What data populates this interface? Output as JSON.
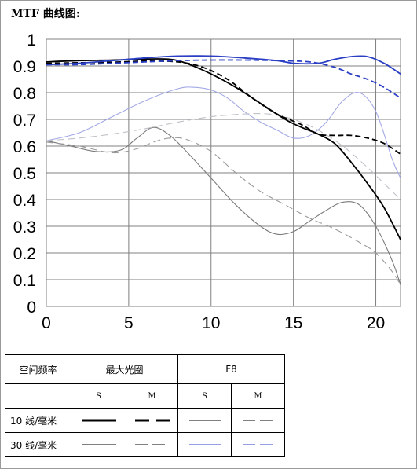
{
  "chart_data": {
    "type": "line",
    "title": "MTF 曲线图:",
    "xlabel": "",
    "ylabel": "",
    "xlim": [
      0,
      21.5
    ],
    "ylim": [
      0,
      1
    ],
    "x_ticks": [
      "0",
      "5",
      "10",
      "15",
      "20"
    ],
    "y_ticks": [
      "1",
      "0.9",
      "0.8",
      "0.7",
      "0.6",
      "0.5",
      "0.4",
      "0.3",
      "0.2",
      "0.1",
      "0"
    ],
    "grid": true,
    "series": [
      {
        "name": "10线/毫米 最大光圈 S",
        "color": "#000000",
        "style": "solid",
        "weight": "thick",
        "points": [
          [
            0,
            0.915
          ],
          [
            2,
            0.92
          ],
          [
            4,
            0.922
          ],
          [
            6,
            0.926
          ],
          [
            7.5,
            0.925
          ],
          [
            8.5,
            0.91
          ],
          [
            10,
            0.87
          ],
          [
            11.5,
            0.82
          ],
          [
            13,
            0.76
          ],
          [
            14.5,
            0.7
          ],
          [
            15.5,
            0.67
          ],
          [
            16.5,
            0.645
          ],
          [
            17.5,
            0.61
          ],
          [
            18.5,
            0.54
          ],
          [
            19.5,
            0.46
          ],
          [
            20.5,
            0.37
          ],
          [
            21.5,
            0.25
          ]
        ]
      },
      {
        "name": "10线/毫米 最大光圈 M",
        "color": "#000000",
        "style": "dashed",
        "weight": "thick",
        "points": [
          [
            0,
            0.91
          ],
          [
            2,
            0.912
          ],
          [
            4,
            0.914
          ],
          [
            6,
            0.918
          ],
          [
            8,
            0.915
          ],
          [
            9.5,
            0.895
          ],
          [
            11,
            0.85
          ],
          [
            12.5,
            0.78
          ],
          [
            14,
            0.72
          ],
          [
            15.5,
            0.68
          ],
          [
            16.5,
            0.645
          ],
          [
            17.5,
            0.64
          ],
          [
            18.5,
            0.64
          ],
          [
            19.5,
            0.63
          ],
          [
            20.5,
            0.61
          ],
          [
            21.5,
            0.57
          ]
        ]
      },
      {
        "name": "10线/毫米 F8 S",
        "color": "#2b3fc4",
        "style": "solid",
        "weight": "thick",
        "points": [
          [
            0,
            0.905
          ],
          [
            2,
            0.91
          ],
          [
            4,
            0.92
          ],
          [
            6,
            0.93
          ],
          [
            8,
            0.937
          ],
          [
            10,
            0.937
          ],
          [
            12,
            0.93
          ],
          [
            14,
            0.92
          ],
          [
            15,
            0.91
          ],
          [
            16.5,
            0.91
          ],
          [
            17.5,
            0.925
          ],
          [
            18.5,
            0.935
          ],
          [
            19.5,
            0.935
          ],
          [
            20.5,
            0.91
          ],
          [
            21.5,
            0.87
          ]
        ]
      },
      {
        "name": "10线/毫米 F8 M",
        "color": "#2b3fc4",
        "style": "dashed",
        "weight": "thick",
        "points": [
          [
            0,
            0.905
          ],
          [
            2,
            0.905
          ],
          [
            4,
            0.91
          ],
          [
            6,
            0.915
          ],
          [
            8,
            0.92
          ],
          [
            10,
            0.922
          ],
          [
            12,
            0.922
          ],
          [
            14,
            0.92
          ],
          [
            16,
            0.915
          ],
          [
            17.5,
            0.895
          ],
          [
            18.5,
            0.87
          ],
          [
            19.5,
            0.85
          ],
          [
            20.5,
            0.82
          ],
          [
            21.5,
            0.78
          ]
        ]
      },
      {
        "name": "30线/毫米 最大光圈 S",
        "color": "#7a7a7a",
        "style": "solid",
        "weight": "thin",
        "points": [
          [
            0,
            0.62
          ],
          [
            1.5,
            0.6
          ],
          [
            3,
            0.58
          ],
          [
            4.5,
            0.585
          ],
          [
            5.5,
            0.63
          ],
          [
            6.5,
            0.67
          ],
          [
            7.5,
            0.64
          ],
          [
            8.5,
            0.58
          ],
          [
            10,
            0.48
          ],
          [
            11.5,
            0.38
          ],
          [
            13,
            0.3
          ],
          [
            14,
            0.27
          ],
          [
            15,
            0.28
          ],
          [
            16,
            0.32
          ],
          [
            17,
            0.36
          ],
          [
            18,
            0.39
          ],
          [
            19,
            0.38
          ],
          [
            20,
            0.3
          ],
          [
            21,
            0.17
          ],
          [
            21.5,
            0.08
          ]
        ]
      },
      {
        "name": "30线/毫米 最大光圈 M",
        "color": "#9a9a9a",
        "style": "dashed",
        "weight": "thin",
        "points": [
          [
            0,
            0.615
          ],
          [
            2,
            0.6
          ],
          [
            4,
            0.575
          ],
          [
            5.5,
            0.59
          ],
          [
            6.5,
            0.615
          ],
          [
            7.5,
            0.63
          ],
          [
            8.5,
            0.625
          ],
          [
            10,
            0.58
          ],
          [
            11.5,
            0.5
          ],
          [
            13,
            0.43
          ],
          [
            14.5,
            0.38
          ],
          [
            16,
            0.33
          ],
          [
            17.5,
            0.29
          ],
          [
            19,
            0.24
          ],
          [
            20,
            0.2
          ],
          [
            21,
            0.13
          ],
          [
            21.5,
            0.08
          ]
        ]
      },
      {
        "name": "30线/毫米 F8 S",
        "color": "#a3a9e6",
        "style": "solid",
        "weight": "thin",
        "points": [
          [
            0,
            0.62
          ],
          [
            2,
            0.65
          ],
          [
            4,
            0.71
          ],
          [
            6,
            0.77
          ],
          [
            8,
            0.815
          ],
          [
            9,
            0.82
          ],
          [
            10,
            0.81
          ],
          [
            11,
            0.78
          ],
          [
            12,
            0.73
          ],
          [
            13,
            0.69
          ],
          [
            14,
            0.66
          ],
          [
            15,
            0.63
          ],
          [
            16,
            0.64
          ],
          [
            17,
            0.69
          ],
          [
            18,
            0.77
          ],
          [
            19,
            0.8
          ],
          [
            20,
            0.73
          ],
          [
            21,
            0.55
          ],
          [
            21.5,
            0.48
          ]
        ]
      },
      {
        "name": "30线/毫米 F8 M",
        "color": "#c0c0c8",
        "style": "dashed",
        "weight": "thin",
        "points": [
          [
            0,
            0.62
          ],
          [
            2,
            0.63
          ],
          [
            4,
            0.645
          ],
          [
            6,
            0.665
          ],
          [
            8,
            0.69
          ],
          [
            10,
            0.71
          ],
          [
            12,
            0.72
          ],
          [
            13.5,
            0.72
          ],
          [
            15,
            0.7
          ],
          [
            16.5,
            0.66
          ],
          [
            18,
            0.6
          ],
          [
            19.5,
            0.52
          ],
          [
            20.5,
            0.46
          ],
          [
            21.5,
            0.4
          ]
        ]
      }
    ]
  },
  "legend_table": {
    "row_header": "空间频率",
    "group1": "最大光圈",
    "group2": "F8",
    "sub_s": "S",
    "sub_m": "M",
    "row1": "10 线/毫米",
    "row2": "30 线/毫米"
  }
}
